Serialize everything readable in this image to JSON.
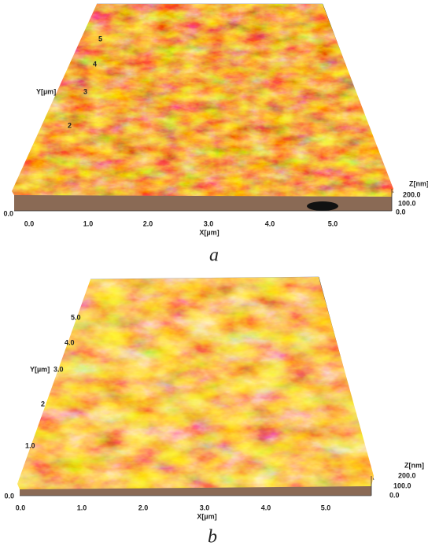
{
  "panels": [
    {
      "caption": "a",
      "x_axis": {
        "label": "X[µm]",
        "ticks": [
          "0.0",
          "1.0",
          "2.0",
          "3.0",
          "4.0",
          "5.0"
        ]
      },
      "y_axis": {
        "label": "Y[µm]",
        "ticks": [
          "0.0",
          "2",
          "3",
          "4",
          "5"
        ]
      },
      "z_axis": {
        "label": "Z[nm]",
        "ticks": [
          "200.0",
          "100.0",
          "0.0"
        ]
      }
    },
    {
      "caption": "b",
      "x_axis": {
        "label": "X[µm]",
        "ticks": [
          "0.0",
          "1.0",
          "2.0",
          "3.0",
          "4.0",
          "5.0"
        ]
      },
      "y_axis": {
        "label": "Y[µm]",
        "ticks": [
          "0.0",
          "1.0",
          "2",
          "3.0",
          "4.0",
          "5.0"
        ]
      },
      "z_axis": {
        "label": "Z[nm]",
        "ticks": [
          "200.0",
          "100.0",
          "0.0"
        ]
      }
    }
  ]
}
